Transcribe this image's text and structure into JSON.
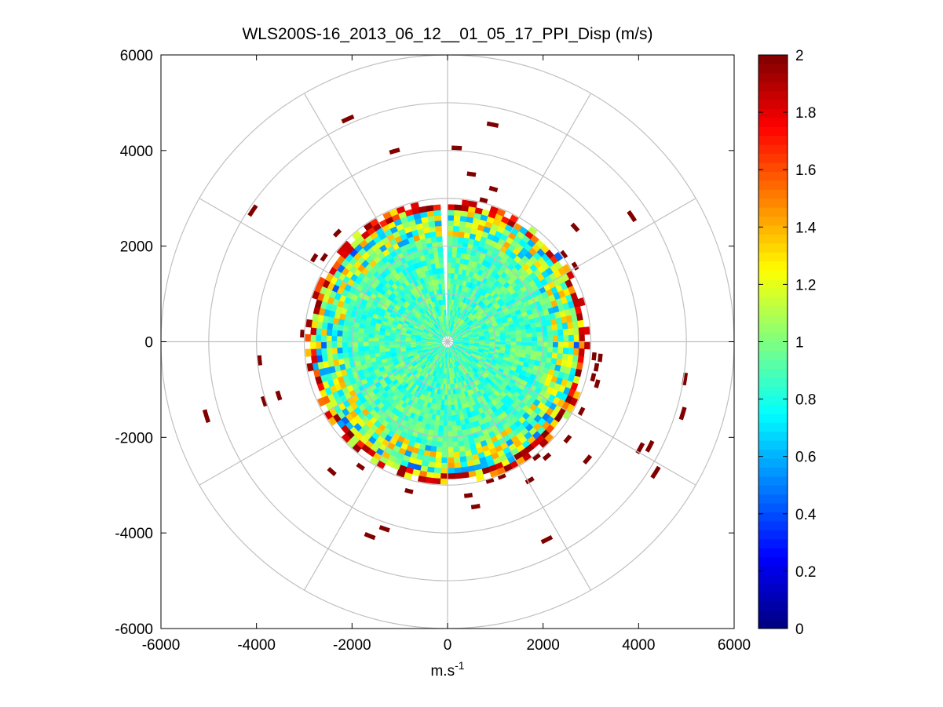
{
  "chart_data": {
    "type": "heatmap",
    "subtype": "polar-ppi",
    "title": "WLS200S-16_2013_06_12__01_05_17_PPI_Disp (m/s)",
    "xlabel": {
      "base": "m.s",
      "sup": "-1"
    },
    "ylabel": "",
    "xlim": [
      -6000,
      6000
    ],
    "ylim": [
      -6000,
      6000
    ],
    "x_ticks": [
      "-6000",
      "-4000",
      "-2000",
      "0",
      "2000",
      "4000",
      "6000"
    ],
    "y_ticks": [
      "6000",
      "4000",
      "2000",
      "0",
      "-2000",
      "-4000",
      "-6000"
    ],
    "polar_grid": {
      "ring_radii": [
        1000,
        2000,
        3000,
        4000,
        5000,
        6000
      ],
      "spoke_angles_deg": [
        0,
        30,
        60,
        90,
        120,
        150,
        180,
        210,
        240,
        270,
        300,
        330
      ],
      "color": "#c0c0c0"
    },
    "colorbar": {
      "colormap": "jet",
      "range": [
        0,
        2
      ],
      "ticks": [
        "2",
        "1.8",
        "1.6",
        "1.4",
        "1.2",
        "1",
        "0.8",
        "0.6",
        "0.4",
        "0.2",
        "0"
      ]
    },
    "scan_coverage": {
      "dense_region_max_range": 3000,
      "gap_azimuth_range_deg": [
        355,
        360
      ],
      "value_by_range": [
        {
          "range": [
            0,
            2200
          ],
          "typical_value": 0.9
        },
        {
          "range": [
            2200,
            2700
          ],
          "typical_value": 1.0
        },
        {
          "range": [
            2700,
            3050
          ],
          "typical_value": 1.5
        }
      ],
      "outlier_value": 2,
      "outlier_range": [
        3000,
        5400
      ]
    }
  }
}
